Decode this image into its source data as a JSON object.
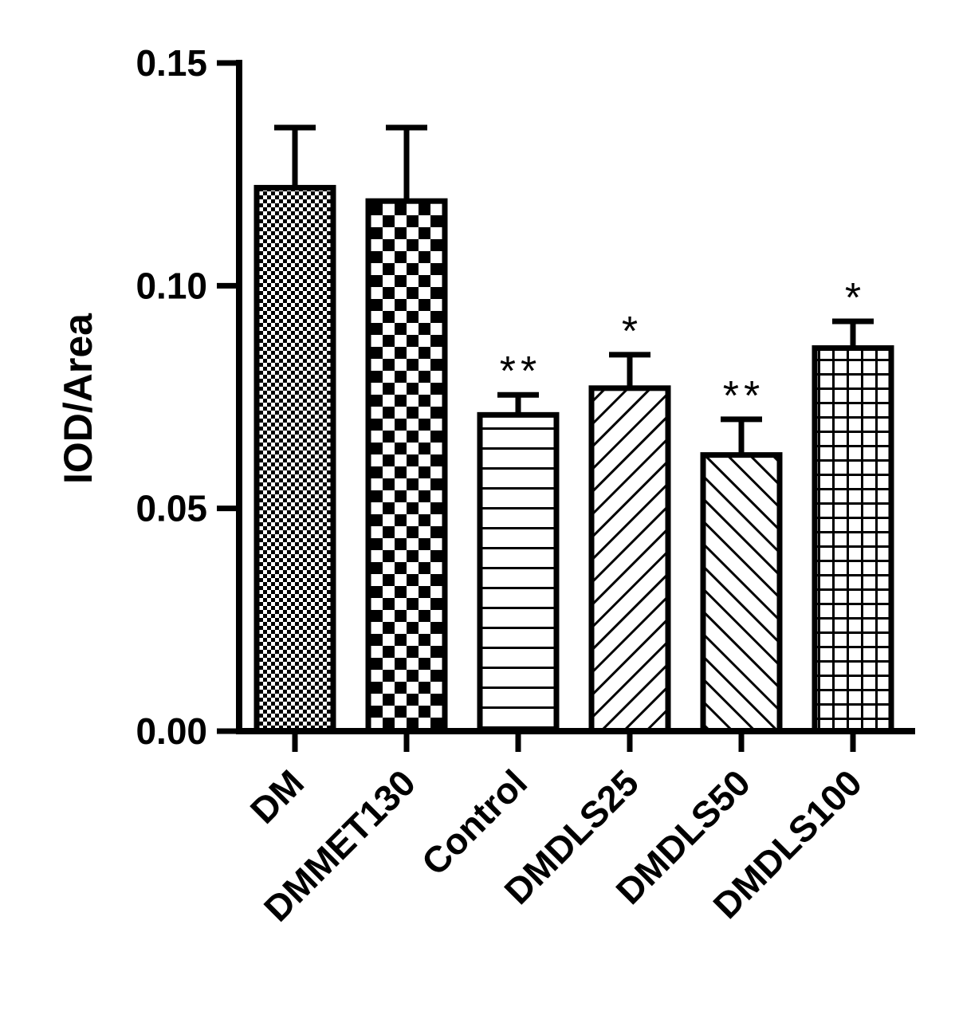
{
  "chart_data": {
    "type": "bar",
    "title": "",
    "xlabel": "",
    "ylabel": "IOD/Area",
    "ylim": [
      0,
      0.15
    ],
    "yticks": [
      "0.00",
      "0.05",
      "0.10",
      "0.15"
    ],
    "categories": [
      "DM",
      "DMMET130",
      "Control",
      "DMDLS25",
      "DMDLS50",
      "DMDLS100"
    ],
    "values": [
      0.122,
      0.119,
      0.071,
      0.077,
      0.062,
      0.086
    ],
    "errors": [
      0.0135,
      0.0165,
      0.0045,
      0.0075,
      0.008,
      0.006
    ],
    "significance": [
      "",
      "",
      "**",
      "*",
      "**",
      "*"
    ],
    "patterns": [
      "fine-checker",
      "checker",
      "horizontal-lines",
      "diagonal-up",
      "diagonal-down",
      "grid"
    ],
    "grid": false,
    "legend": "none",
    "colors": {
      "bar_stroke": "#000000",
      "bar_fill": "#ffffff",
      "pattern": "#000000"
    }
  }
}
